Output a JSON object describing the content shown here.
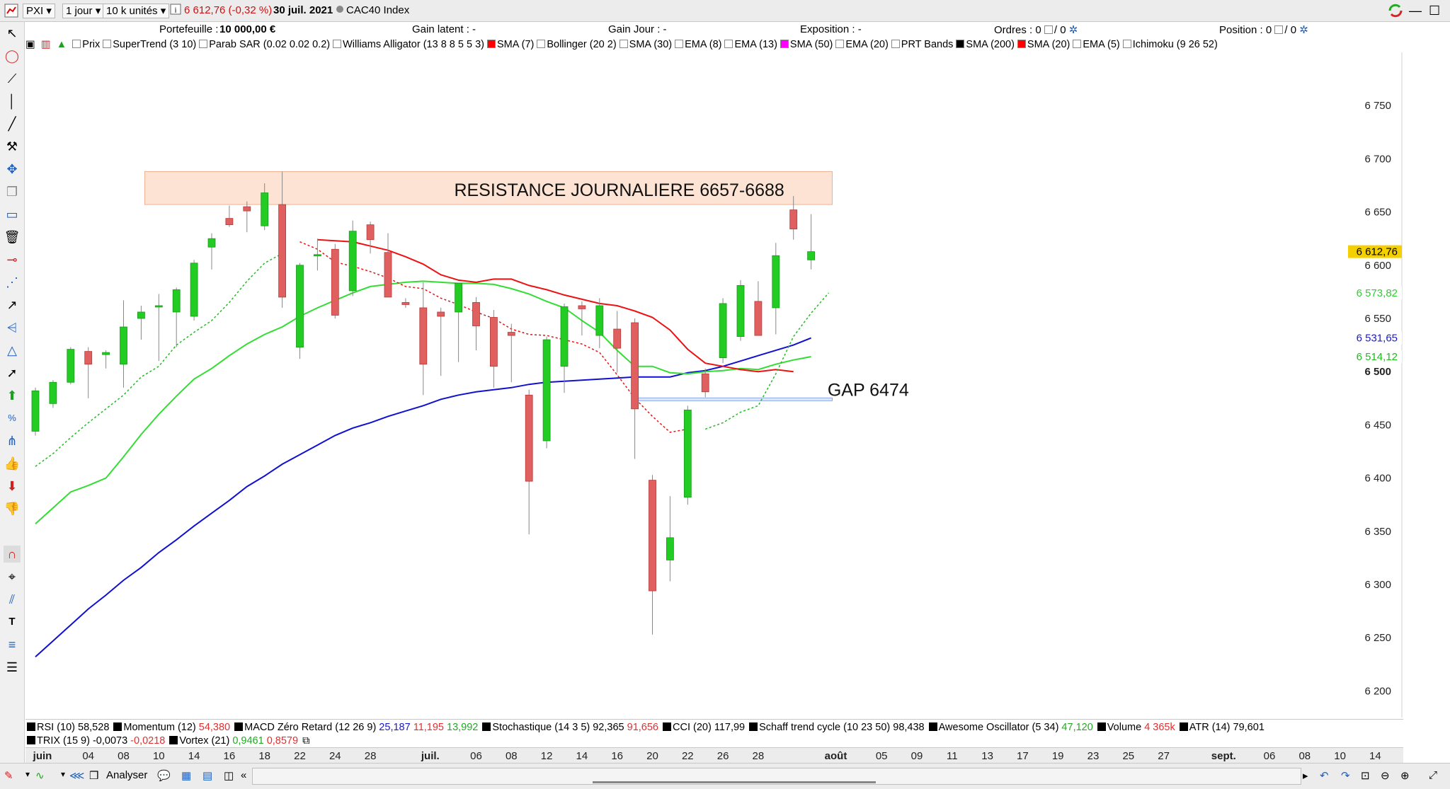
{
  "topbar": {
    "symbol": "PXI",
    "timeframe": "1 jour",
    "units": "10 k unités",
    "price_change": "6 612,76 (-0,32 %)",
    "date": "30 juil. 2021",
    "instrument": "CAC40 Index"
  },
  "infobar": {
    "portefeuille_label": "Portefeuille :",
    "portefeuille_value": "10 000,00 €",
    "gain_latent": "Gain latent : -",
    "gain_jour": "Gain Jour : -",
    "exposition": "Exposition : -",
    "ordres_label": "Ordres : 0",
    "ordres_sep": "/ 0",
    "position_label": "Position : 0",
    "position_sep": "/ 0"
  },
  "indicators": [
    {
      "label": "Prix",
      "color": "#ffffff"
    },
    {
      "label": "SuperTrend (3 10)",
      "color": "#ffffff"
    },
    {
      "label": "Parab SAR (0.02 0.02 0.2)",
      "color": "#ffffff"
    },
    {
      "label": "Williams Alligator (13 8 8 5 5 3)",
      "color": "#ffffff"
    },
    {
      "label": "SMA (7)",
      "color": "#ff0000"
    },
    {
      "label": "Bollinger (20 2)",
      "color": "#ffffff"
    },
    {
      "label": "SMA (30)",
      "color": "#ffffff"
    },
    {
      "label": "EMA (8)",
      "color": "#ffffff"
    },
    {
      "label": "EMA (13)",
      "color": "#ffffff"
    },
    {
      "label": "SMA (50)",
      "color": "#ff00ff"
    },
    {
      "label": "EMA (20)",
      "color": "#ffffff"
    },
    {
      "label": "PRT Bands",
      "color": "#ffffff"
    },
    {
      "label": "SMA (200)",
      "color": "#000000"
    },
    {
      "label": "SMA (20)",
      "color": "#ff0000"
    },
    {
      "label": "EMA (5)",
      "color": "#ffffff"
    },
    {
      "label": "Ichimoku (9 26 52)",
      "color": "#ffffff"
    }
  ],
  "annotations": {
    "resistance_label": "RESISTANCE JOURNALIERE 6657-6688",
    "resistance_low": 6657,
    "resistance_high": 6688,
    "gap_label": "GAP 6474",
    "gap_level": 6474
  },
  "price_labels": [
    {
      "text": "6 612,76",
      "value": 6612.76,
      "bg": "#f5d000",
      "fg": "#000000"
    },
    {
      "text": "6 573,82",
      "value": 6573.82,
      "bg": "#ffffff",
      "fg": "#33cc33"
    },
    {
      "text": "6 531,65",
      "value": 6531.65,
      "bg": "#ffffff",
      "fg": "#1a1acc"
    },
    {
      "text": "6 514,12",
      "value": 6514.12,
      "bg": "#ffffff",
      "fg": "#22bb22"
    }
  ],
  "chart_data": {
    "type": "candlestick",
    "ylim": [
      6175,
      6800
    ],
    "y_ticks": [
      {
        "value": 6750,
        "label": "6 750"
      },
      {
        "value": 6700,
        "label": "6 700"
      },
      {
        "value": 6650,
        "label": "6 650"
      },
      {
        "value": 6600,
        "label": "6 600"
      },
      {
        "value": 6550,
        "label": "6 550"
      },
      {
        "value": 6500,
        "label": "6 500"
      },
      {
        "value": 6450,
        "label": "6 450"
      },
      {
        "value": 6400,
        "label": "6 400"
      },
      {
        "value": 6350,
        "label": "6 350"
      },
      {
        "value": 6300,
        "label": "6 300"
      },
      {
        "value": 6250,
        "label": "6 250"
      },
      {
        "value": 6200,
        "label": "6 200"
      }
    ],
    "x_ticks": [
      {
        "label": "juin",
        "slot": 0,
        "bold": true
      },
      {
        "label": "04",
        "slot": 3
      },
      {
        "label": "08",
        "slot": 5
      },
      {
        "label": "10",
        "slot": 7
      },
      {
        "label": "14",
        "slot": 9
      },
      {
        "label": "16",
        "slot": 11
      },
      {
        "label": "18",
        "slot": 13
      },
      {
        "label": "22",
        "slot": 15
      },
      {
        "label": "24",
        "slot": 17
      },
      {
        "label": "28",
        "slot": 19
      },
      {
        "label": "juil.",
        "slot": 22,
        "bold": true
      },
      {
        "label": "06",
        "slot": 25
      },
      {
        "label": "08",
        "slot": 27
      },
      {
        "label": "12",
        "slot": 29
      },
      {
        "label": "14",
        "slot": 31
      },
      {
        "label": "16",
        "slot": 33
      },
      {
        "label": "20",
        "slot": 35
      },
      {
        "label": "22",
        "slot": 37
      },
      {
        "label": "26",
        "slot": 39
      },
      {
        "label": "28",
        "slot": 41
      },
      {
        "label": "août",
        "slot": 45,
        "bold": true
      },
      {
        "label": "05",
        "slot": 48
      },
      {
        "label": "09",
        "slot": 50
      },
      {
        "label": "11",
        "slot": 52
      },
      {
        "label": "13",
        "slot": 54
      },
      {
        "label": "17",
        "slot": 56
      },
      {
        "label": "19",
        "slot": 58
      },
      {
        "label": "23",
        "slot": 60
      },
      {
        "label": "25",
        "slot": 62
      },
      {
        "label": "27",
        "slot": 64
      },
      {
        "label": "sept.",
        "slot": 67,
        "bold": true
      },
      {
        "label": "06",
        "slot": 70
      },
      {
        "label": "08",
        "slot": 72
      },
      {
        "label": "10",
        "slot": 74
      },
      {
        "label": "14",
        "slot": 76
      }
    ],
    "candles": [
      {
        "o": 6444,
        "h": 6485,
        "l": 6440,
        "c": 6482
      },
      {
        "o": 6470,
        "h": 6492,
        "l": 6466,
        "c": 6490
      },
      {
        "o": 6490,
        "h": 6523,
        "l": 6488,
        "c": 6521
      },
      {
        "o": 6519,
        "h": 6523,
        "l": 6475,
        "c": 6507
      },
      {
        "o": 6516,
        "h": 6520,
        "l": 6503,
        "c": 6518
      },
      {
        "o": 6507,
        "h": 6567,
        "l": 6485,
        "c": 6542
      },
      {
        "o": 6550,
        "h": 6562,
        "l": 6530,
        "c": 6556
      },
      {
        "o": 6561,
        "h": 6573,
        "l": 6510,
        "c": 6562
      },
      {
        "o": 6556,
        "h": 6579,
        "l": 6523,
        "c": 6577
      },
      {
        "o": 6552,
        "h": 6605,
        "l": 6548,
        "c": 6602
      },
      {
        "o": 6617,
        "h": 6630,
        "l": 6596,
        "c": 6625
      },
      {
        "o": 6644,
        "h": 6656,
        "l": 6636,
        "c": 6638
      },
      {
        "o": 6655,
        "h": 6660,
        "l": 6631,
        "c": 6651
      },
      {
        "o": 6637,
        "h": 6677,
        "l": 6633,
        "c": 6668
      },
      {
        "o": 6657,
        "h": 6688,
        "l": 6560,
        "c": 6570
      },
      {
        "o": 6523,
        "h": 6602,
        "l": 6512,
        "c": 6600
      },
      {
        "o": 6609,
        "h": 6625,
        "l": 6595,
        "c": 6610
      },
      {
        "o": 6615,
        "h": 6620,
        "l": 6550,
        "c": 6553
      },
      {
        "o": 6576,
        "h": 6642,
        "l": 6571,
        "c": 6632
      },
      {
        "o": 6638,
        "h": 6641,
        "l": 6611,
        "c": 6624
      },
      {
        "o": 6612,
        "h": 6630,
        "l": 6570,
        "c": 6570
      },
      {
        "o": 6565,
        "h": 6569,
        "l": 6560,
        "c": 6563
      },
      {
        "o": 6560,
        "h": 6584,
        "l": 6478,
        "c": 6507
      },
      {
        "o": 6556,
        "h": 6560,
        "l": 6496,
        "c": 6552
      },
      {
        "o": 6556,
        "h": 6582,
        "l": 6509,
        "c": 6583
      },
      {
        "o": 6565,
        "h": 6570,
        "l": 6520,
        "c": 6543
      },
      {
        "o": 6551,
        "h": 6558,
        "l": 6485,
        "c": 6505
      },
      {
        "o": 6537,
        "h": 6545,
        "l": 6490,
        "c": 6534
      },
      {
        "o": 6478,
        "h": 6483,
        "l": 6347,
        "c": 6397
      },
      {
        "o": 6435,
        "h": 6533,
        "l": 6428,
        "c": 6530
      },
      {
        "o": 6505,
        "h": 6564,
        "l": 6480,
        "c": 6561
      },
      {
        "o": 6562,
        "h": 6566,
        "l": 6534,
        "c": 6559
      },
      {
        "o": 6534,
        "h": 6569,
        "l": 6522,
        "c": 6562
      },
      {
        "o": 6540,
        "h": 6557,
        "l": 6499,
        "c": 6522
      },
      {
        "o": 6546,
        "h": 6550,
        "l": 6418,
        "c": 6465
      },
      {
        "o": 6398,
        "h": 6403,
        "l": 6253,
        "c": 6294
      },
      {
        "o": 6323,
        "h": 6383,
        "l": 6303,
        "c": 6344
      },
      {
        "o": 6382,
        "h": 6468,
        "l": 6375,
        "c": 6464
      },
      {
        "o": 6498,
        "h": 6503,
        "l": 6476,
        "c": 6481
      },
      {
        "o": 6513,
        "h": 6569,
        "l": 6508,
        "c": 6564
      },
      {
        "o": 6533,
        "h": 6586,
        "l": 6529,
        "c": 6581
      },
      {
        "o": 6566,
        "h": 6585,
        "l": 6534,
        "c": 6534
      },
      {
        "o": 6560,
        "h": 6621,
        "l": 6535,
        "c": 6609
      },
      {
        "o": 6652,
        "h": 6665,
        "l": 6624,
        "c": 6634
      },
      {
        "o": 6605,
        "h": 6648,
        "l": 6596,
        "c": 6612.76
      }
    ],
    "series": [
      {
        "key": "sma200",
        "color": "#1010d0",
        "dashed": false,
        "values": [
          6232,
          6247,
          6262,
          6277,
          6290,
          6304,
          6316,
          6330,
          6342,
          6355,
          6367,
          6379,
          6392,
          6402,
          6413,
          6422,
          6431,
          6440,
          6447,
          6452,
          6458,
          6463,
          6468,
          6474,
          6478,
          6481,
          6483,
          6485,
          6488,
          6490,
          6491,
          6492,
          6493,
          6494,
          6495,
          6495,
          6495,
          6499,
          6501,
          6505,
          6510,
          6515,
          6520,
          6525,
          6531.65
        ]
      },
      {
        "key": "sma50",
        "color": "#33dd33",
        "dashed": false,
        "values": [
          6357,
          6372,
          6387,
          6393,
          6400,
          6420,
          6441,
          6460,
          6477,
          6493,
          6503,
          6515,
          6526,
          6535,
          6542,
          6552,
          6560,
          6567,
          6574,
          6580,
          6582,
          6584,
          6585,
          6584,
          6583,
          6583,
          6582,
          6578,
          6573,
          6566,
          6560,
          6548,
          6537,
          6520,
          6505,
          6505,
          6499,
          6498,
          6500,
          6501,
          6503,
          6502,
          6507,
          6511,
          6514.12
        ]
      },
      {
        "key": "sma20",
        "color": "#ee1111",
        "dashed": false,
        "start": 16,
        "values": [
          6624,
          6623,
          6622,
          6618,
          6614,
          6608,
          6601,
          6591,
          6586,
          6584,
          6587,
          6587,
          6581,
          6577,
          6572,
          6568,
          6564,
          6562,
          6557,
          6551,
          6539,
          6521,
          6508,
          6505,
          6502,
          6500,
          6502,
          6500
        ]
      },
      {
        "key": "st_green_upper",
        "color": "#22bb22",
        "dashed": true,
        "start": 0,
        "end": 14,
        "values": [
          6411,
          6423,
          6438,
          6452,
          6465,
          6478,
          6495,
          6505,
          6525,
          6537,
          6548,
          6565,
          6585,
          6602,
          6611
        ]
      },
      {
        "key": "st_red",
        "color": "#ee1111",
        "dashed": true,
        "start": 15,
        "end": 38,
        "values": [
          6622,
          6615,
          6603,
          6599,
          6594,
          6588,
          6580,
          6578,
          6569,
          6563,
          6556,
          6550,
          6540,
          6535,
          6534,
          6530,
          6526,
          6518,
          6497,
          6475,
          6458,
          6443,
          6446
        ]
      },
      {
        "key": "st_green_lower",
        "color": "#22bb22",
        "dashed": true,
        "start": 38,
        "end": 44,
        "values": [
          6446,
          6452,
          6462,
          6468,
          6498,
          6533,
          6555,
          6574
        ]
      }
    ]
  },
  "bottom_indicators": {
    "row1": [
      {
        "name": "RSI (10)",
        "values": [
          {
            "text": "58,528",
            "color": "#000000"
          }
        ]
      },
      {
        "name": "Momentum (12)",
        "values": [
          {
            "text": "54,380",
            "color": "#e03030"
          }
        ]
      },
      {
        "name": "MACD Zéro Retard (12 26 9)",
        "values": [
          {
            "text": "25,187",
            "color": "#1a1acc"
          },
          {
            "text": "11,195",
            "color": "#e03030"
          },
          {
            "text": "13,992",
            "color": "#22aa22"
          }
        ]
      },
      {
        "name": "Stochastique (14 3 5)",
        "values": [
          {
            "text": "92,365",
            "color": "#000000"
          },
          {
            "text": "91,656",
            "color": "#e03030"
          }
        ]
      },
      {
        "name": "CCI (20)",
        "values": [
          {
            "text": "117,99",
            "color": "#000000"
          }
        ]
      },
      {
        "name": "Schaff trend cycle (10 23 50)",
        "values": [
          {
            "text": "98,438",
            "color": "#000000"
          }
        ]
      },
      {
        "name": "Awesome Oscillator (5 34)",
        "values": [
          {
            "text": "47,120",
            "color": "#22aa22"
          }
        ]
      },
      {
        "name": "Volume",
        "values": [
          {
            "text": "4 365k",
            "color": "#e03030"
          }
        ]
      },
      {
        "name": "ATR (14)",
        "values": [
          {
            "text": "79,601",
            "color": "#000000"
          }
        ]
      }
    ],
    "row2": [
      {
        "name": "TRIX (15 9)",
        "values": [
          {
            "text": "-0,0073",
            "color": "#000000"
          },
          {
            "text": "-0,0218",
            "color": "#e03030"
          }
        ]
      },
      {
        "name": "Vortex (21)",
        "values": [
          {
            "text": "0,9461",
            "color": "#22aa22"
          },
          {
            "text": "0,8579",
            "color": "#e03030"
          }
        ]
      }
    ]
  },
  "bottombar": {
    "analyser": "Analyser"
  }
}
